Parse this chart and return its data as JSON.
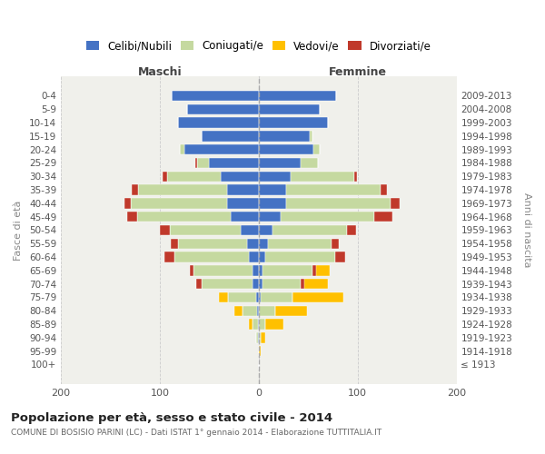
{
  "age_groups": [
    "100+",
    "95-99",
    "90-94",
    "85-89",
    "80-84",
    "75-79",
    "70-74",
    "65-69",
    "60-64",
    "55-59",
    "50-54",
    "45-49",
    "40-44",
    "35-39",
    "30-34",
    "25-29",
    "20-24",
    "15-19",
    "10-14",
    "5-9",
    "0-4"
  ],
  "birth_years": [
    "≤ 1913",
    "1914-1918",
    "1919-1923",
    "1924-1928",
    "1929-1933",
    "1934-1938",
    "1939-1943",
    "1944-1948",
    "1949-1953",
    "1954-1958",
    "1959-1963",
    "1964-1968",
    "1969-1973",
    "1974-1978",
    "1979-1983",
    "1984-1988",
    "1989-1993",
    "1994-1998",
    "1999-2003",
    "2004-2008",
    "2009-2013"
  ],
  "maschi_celibi": [
    0,
    0,
    1,
    1,
    2,
    3,
    6,
    6,
    10,
    12,
    18,
    28,
    32,
    32,
    38,
    50,
    75,
    58,
    82,
    72,
    88
  ],
  "maschi_coniugati": [
    0,
    0,
    2,
    5,
    14,
    28,
    52,
    60,
    75,
    70,
    72,
    95,
    97,
    90,
    55,
    12,
    5,
    0,
    0,
    0,
    0
  ],
  "maschi_vedovi": [
    0,
    0,
    0,
    4,
    9,
    9,
    5,
    4,
    2,
    2,
    2,
    2,
    1,
    1,
    0,
    0,
    0,
    0,
    0,
    0,
    0
  ],
  "maschi_divorziati": [
    0,
    0,
    0,
    0,
    0,
    0,
    5,
    4,
    10,
    7,
    10,
    10,
    7,
    6,
    4,
    2,
    0,
    0,
    0,
    0,
    0
  ],
  "femmine_nubili": [
    0,
    0,
    0,
    0,
    0,
    2,
    4,
    4,
    7,
    9,
    14,
    22,
    28,
    28,
    32,
    42,
    55,
    52,
    70,
    62,
    78
  ],
  "femmine_coniugate": [
    0,
    0,
    2,
    7,
    17,
    32,
    38,
    50,
    70,
    65,
    75,
    95,
    105,
    95,
    65,
    18,
    7,
    2,
    0,
    0,
    0
  ],
  "femmine_vedove": [
    0,
    2,
    5,
    18,
    32,
    52,
    28,
    18,
    7,
    4,
    4,
    2,
    2,
    1,
    0,
    0,
    0,
    0,
    0,
    0,
    0
  ],
  "femmine_divorziate": [
    0,
    0,
    0,
    0,
    0,
    0,
    4,
    4,
    10,
    7,
    9,
    18,
    10,
    7,
    2,
    0,
    0,
    0,
    0,
    0,
    0
  ],
  "color_celibi": "#4472c4",
  "color_coniugati": "#c5d9a0",
  "color_vedovi": "#ffc000",
  "color_divorziati": "#c0392b",
  "xlim": 200,
  "title": "Popolazione per età, sesso e stato civile - 2014",
  "subtitle": "COMUNE DI BOSISIO PARINI (LC) - Dati ISTAT 1° gennaio 2014 - Elaborazione TUTTITALIA.IT",
  "ylabel_left": "Fasce di età",
  "ylabel_right": "Anni di nascita",
  "label_maschi": "Maschi",
  "label_femmine": "Femmine",
  "bg_color": "#f0f0eb",
  "grid_color": "#cccccc",
  "legend_labels": [
    "Celibi/Nubili",
    "Coniugati/e",
    "Vedovi/e",
    "Divorziati/e"
  ]
}
